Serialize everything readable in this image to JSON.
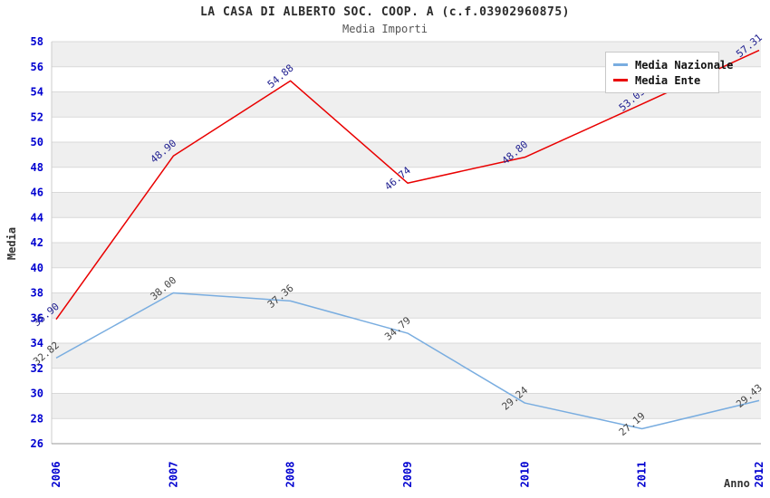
{
  "chart_data": {
    "type": "line",
    "title": "LA CASA DI ALBERTO SOC. COOP. A (c.f.03902960875)",
    "subtitle": "Media Importi",
    "xlabel": "Anno",
    "ylabel": "Media",
    "x": [
      2006,
      2007,
      2008,
      2009,
      2010,
      2011,
      2012
    ],
    "ylim": [
      26,
      58
    ],
    "ytick_step": 2,
    "grid": "horizontal-bands",
    "band_colors": [
      "#efefef",
      "#ffffff"
    ],
    "gridline_color": "#d9d9d9",
    "axis_line_color": "#999999",
    "tick_label_color": "#0000d0",
    "legend_position": "top-right",
    "series": [
      {
        "name": "Media Nazionale",
        "color": "#79ade0",
        "label_color": "#454545",
        "values": [
          32.82,
          38.0,
          37.36,
          34.79,
          29.24,
          27.19,
          29.43
        ],
        "point_labels": [
          "32.82",
          "38.00",
          "37.36",
          "34.79",
          "29.24",
          "27.19",
          "29.43"
        ]
      },
      {
        "name": "Media Ente",
        "color": "#e90000",
        "label_color": "#202090",
        "values": [
          35.9,
          48.9,
          54.88,
          46.74,
          48.8,
          53.03,
          57.31
        ],
        "point_labels": [
          "35.90",
          "48.90",
          "54.88",
          "46.74",
          "48.80",
          "53.03",
          "57.31"
        ]
      }
    ]
  }
}
